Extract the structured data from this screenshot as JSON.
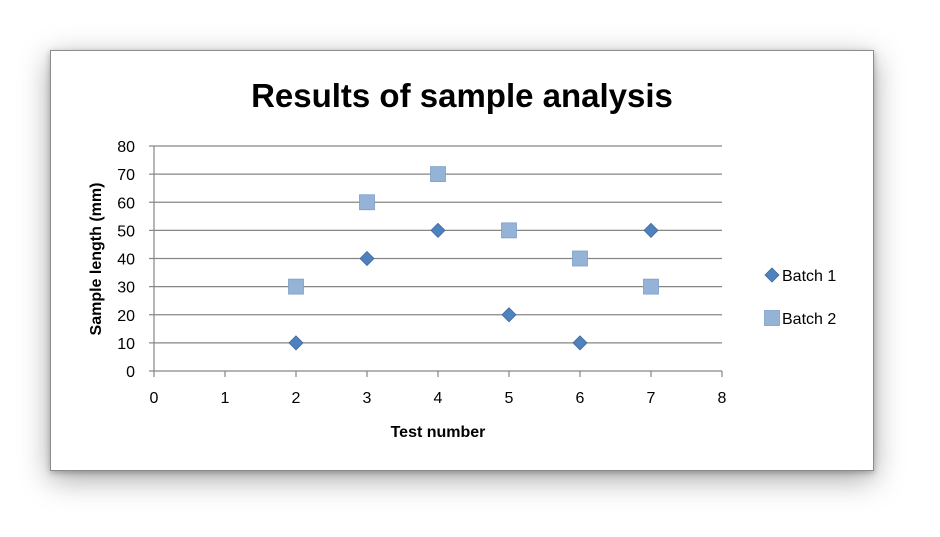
{
  "chart_data": {
    "type": "scatter",
    "title": "Results of sample analysis",
    "xlabel": "Test number",
    "ylabel": "Sample length (mm)",
    "xlim": [
      0,
      8
    ],
    "ylim": [
      0,
      80
    ],
    "x_ticks": [
      0,
      1,
      2,
      3,
      4,
      5,
      6,
      7,
      8
    ],
    "y_ticks": [
      0,
      10,
      20,
      30,
      40,
      50,
      60,
      70,
      80
    ],
    "grid": "horizontal",
    "legend_position": "right",
    "series": [
      {
        "name": "Batch 1",
        "marker": "diamond",
        "color": "#4f81bd",
        "x": [
          2,
          3,
          4,
          5,
          6,
          7
        ],
        "y": [
          10,
          40,
          50,
          20,
          10,
          50
        ]
      },
      {
        "name": "Batch 2",
        "marker": "square",
        "color": "#95b3d7",
        "x": [
          2,
          3,
          4,
          5,
          6,
          7
        ],
        "y": [
          30,
          60,
          70,
          50,
          40,
          30
        ]
      }
    ]
  }
}
